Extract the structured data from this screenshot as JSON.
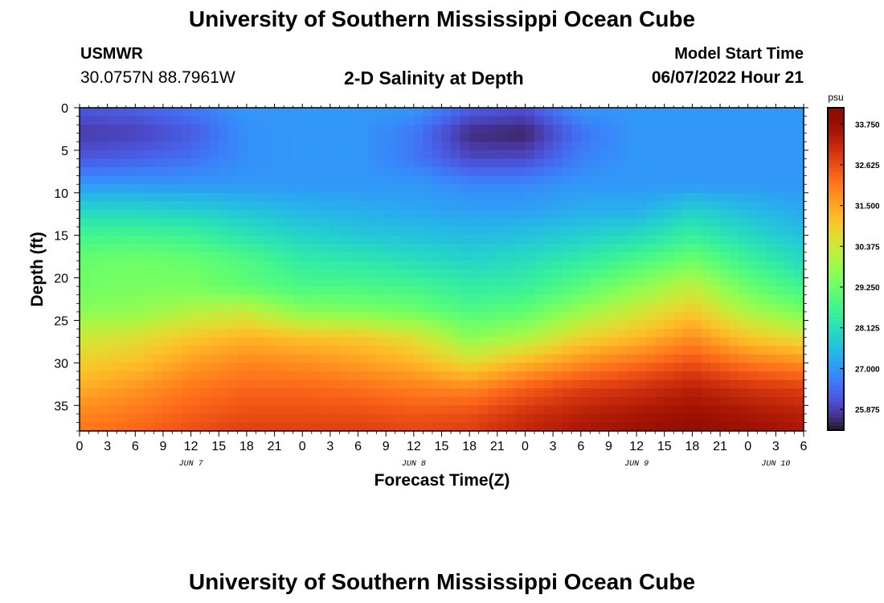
{
  "page": {
    "title": "University of Southern Mississippi Ocean Cube",
    "bottom_title": "University of Southern Mississippi Ocean Cube",
    "station_name": "USMWR",
    "station_coords": "30.0757N  88.7961W",
    "subtitle": "2-D Salinity at Depth",
    "model_start_label": "Model Start Time",
    "model_start_time": "06/07/2022 Hour 21"
  },
  "chart_data": {
    "type": "heatmap",
    "title": "2-D Salinity at Depth",
    "xlabel": "Forecast Time(Z)",
    "ylabel": "Depth (ft)",
    "x_tick_labels": [
      "0",
      "3",
      "6",
      "9",
      "12",
      "15",
      "18",
      "21",
      "0",
      "3",
      "6",
      "9",
      "12",
      "15",
      "18",
      "21",
      "0",
      "3",
      "6",
      "9",
      "12",
      "15",
      "18",
      "21",
      "0",
      "3",
      "6"
    ],
    "x_hours_range": [
      0,
      78
    ],
    "date_labels": [
      {
        "label": "JUN 7",
        "at_hour": 12
      },
      {
        "label": "JUN 8",
        "at_hour": 36
      },
      {
        "label": "JUN 9",
        "at_hour": 60
      },
      {
        "label": "JUN 10",
        "at_hour": 75
      }
    ],
    "y_tick_labels": [
      "0",
      "5",
      "10",
      "15",
      "20",
      "25",
      "30",
      "35"
    ],
    "y_ticks": [
      0,
      5,
      10,
      15,
      20,
      25,
      30,
      35
    ],
    "y_range": [
      0,
      38
    ],
    "y_inverted": true,
    "colorbar": {
      "unit": "psu",
      "range": [
        25.3,
        34.2
      ],
      "tick_values": [
        25.875,
        27.0,
        28.125,
        29.25,
        30.375,
        31.5,
        32.625,
        33.75
      ],
      "tick_labels": [
        "25.875",
        "27.000",
        "28.125",
        "29.250",
        "30.375",
        "31.500",
        "32.625",
        "33.750"
      ],
      "colormap": "turbo"
    },
    "depth_profile": [
      0,
      3,
      6,
      9,
      12,
      15,
      18,
      21,
      24,
      27,
      30,
      33,
      36,
      38
    ],
    "time_hours": [
      0,
      6,
      12,
      18,
      24,
      30,
      36,
      42,
      48,
      54,
      60,
      66,
      72,
      78
    ],
    "values": [
      [
        26.2,
        26.3,
        26.6,
        27.0,
        27.0,
        27.0,
        27.0,
        26.3,
        26.1,
        27.0,
        27.0,
        27.0,
        27.0,
        27.0
      ],
      [
        25.8,
        25.9,
        26.2,
        26.9,
        27.0,
        27.0,
        26.6,
        25.6,
        25.5,
        26.5,
        27.0,
        27.0,
        27.0,
        27.0
      ],
      [
        26.2,
        26.3,
        26.5,
        26.9,
        27.0,
        27.0,
        26.6,
        26.0,
        26.0,
        26.7,
        27.0,
        27.0,
        27.0,
        27.0
      ],
      [
        27.0,
        27.0,
        27.0,
        27.0,
        27.0,
        27.0,
        27.0,
        26.8,
        26.8,
        27.0,
        27.0,
        27.0,
        27.0,
        27.0
      ],
      [
        27.9,
        27.9,
        27.8,
        27.6,
        27.4,
        27.3,
        27.2,
        27.1,
        27.1,
        27.3,
        27.3,
        27.8,
        27.5,
        27.2
      ],
      [
        28.7,
        28.7,
        28.6,
        28.2,
        27.9,
        27.7,
        27.6,
        27.5,
        27.6,
        27.8,
        28.0,
        28.5,
        28.0,
        27.6
      ],
      [
        29.2,
        29.3,
        29.2,
        28.9,
        28.4,
        28.3,
        28.1,
        27.9,
        28.1,
        28.4,
        28.8,
        29.3,
        28.6,
        28.0
      ],
      [
        29.3,
        29.4,
        29.4,
        29.1,
        28.8,
        28.8,
        28.7,
        28.4,
        28.5,
        29.0,
        29.6,
        30.2,
        29.2,
        28.6
      ],
      [
        29.6,
        29.7,
        30.1,
        30.3,
        29.6,
        29.5,
        29.3,
        28.9,
        29.1,
        29.8,
        30.4,
        31.0,
        30.0,
        29.4
      ],
      [
        30.4,
        30.6,
        31.0,
        31.3,
        31.1,
        31.0,
        30.6,
        29.6,
        30.0,
        30.8,
        31.2,
        31.8,
        31.0,
        30.6
      ],
      [
        30.9,
        31.1,
        31.6,
        31.9,
        31.8,
        31.6,
        31.3,
        30.7,
        31.3,
        31.8,
        32.2,
        32.6,
        32.1,
        31.8
      ],
      [
        31.4,
        31.7,
        32.1,
        32.3,
        32.3,
        32.2,
        32.0,
        31.9,
        32.4,
        32.8,
        33.0,
        33.3,
        33.0,
        32.8
      ],
      [
        31.9,
        32.1,
        32.4,
        32.6,
        32.6,
        32.6,
        32.5,
        32.6,
        33.0,
        33.3,
        33.5,
        33.7,
        33.5,
        33.3
      ],
      [
        32.1,
        32.3,
        32.6,
        32.8,
        32.8,
        32.8,
        32.7,
        32.8,
        33.2,
        33.5,
        33.7,
        33.9,
        33.7,
        33.5
      ]
    ]
  }
}
